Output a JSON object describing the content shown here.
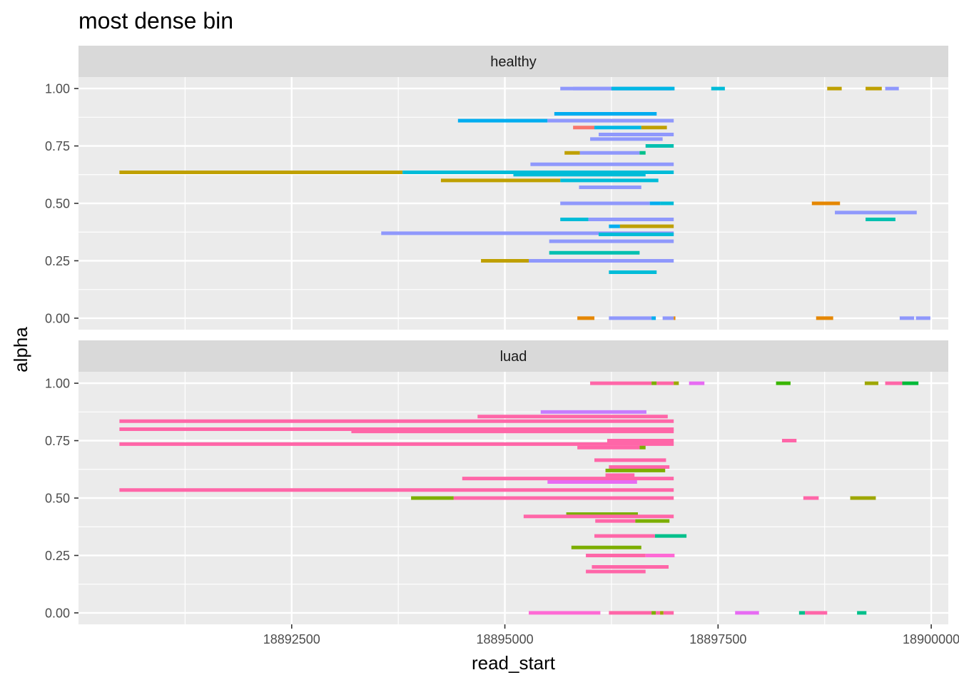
{
  "chart_data": {
    "type": "segments",
    "title": "most dense bin",
    "xlabel": "read_start",
    "ylabel": "alpha",
    "xlim": [
      18890000,
      18900200
    ],
    "ylim": [
      -0.05,
      1.05
    ],
    "x_ticks": [
      18892500,
      18895000,
      18897500,
      18900000
    ],
    "x_tick_labels": [
      "18892500",
      "18895000",
      "18897500",
      "18900000"
    ],
    "y_ticks": [
      0,
      0.25,
      0.5,
      0.75,
      1
    ],
    "y_tick_labels": [
      "0.00",
      "0.25",
      "0.50",
      "0.75",
      "1.00"
    ],
    "grid": true,
    "legend": "none",
    "panels": [
      {
        "label": "healthy",
        "segments": [
          {
            "x0": 18895650,
            "x1": 18896980,
            "y": 1.0,
            "color": "#8f98fc"
          },
          {
            "x0": 18895800,
            "x1": 18896950,
            "y": 1.0,
            "color": "#8f98fc"
          },
          {
            "x0": 18896250,
            "x1": 18896990,
            "y": 1.0,
            "color": "#00b8e5"
          },
          {
            "x0": 18897420,
            "x1": 18897580,
            "y": 1.0,
            "color": "#00bcd8"
          },
          {
            "x0": 18898780,
            "x1": 18898950,
            "y": 1.0,
            "color": "#bfa000"
          },
          {
            "x0": 18899230,
            "x1": 18899420,
            "y": 1.0,
            "color": "#bfa000"
          },
          {
            "x0": 18899460,
            "x1": 18899620,
            "y": 1.0,
            "color": "#8f98fc"
          },
          {
            "x0": 18895580,
            "x1": 18896780,
            "y": 0.89,
            "color": "#00adf0"
          },
          {
            "x0": 18894450,
            "x1": 18895500,
            "y": 0.86,
            "color": "#00adf0"
          },
          {
            "x0": 18895500,
            "x1": 18896980,
            "y": 0.86,
            "color": "#8f98fc"
          },
          {
            "x0": 18895800,
            "x1": 18896050,
            "y": 0.83,
            "color": "#f8766d"
          },
          {
            "x0": 18896050,
            "x1": 18896600,
            "y": 0.83,
            "color": "#00b8e5"
          },
          {
            "x0": 18896600,
            "x1": 18896900,
            "y": 0.83,
            "color": "#bfa000"
          },
          {
            "x0": 18896100,
            "x1": 18896980,
            "y": 0.8,
            "color": "#8f98fc"
          },
          {
            "x0": 18896000,
            "x1": 18896850,
            "y": 0.78,
            "color": "#8f98fc"
          },
          {
            "x0": 18896650,
            "x1": 18896980,
            "y": 0.75,
            "color": "#00c0b0"
          },
          {
            "x0": 18895700,
            "x1": 18895880,
            "y": 0.72,
            "color": "#bfa000"
          },
          {
            "x0": 18895880,
            "x1": 18896580,
            "y": 0.72,
            "color": "#8f98fc"
          },
          {
            "x0": 18896580,
            "x1": 18896650,
            "y": 0.72,
            "color": "#00c08b"
          },
          {
            "x0": 18895300,
            "x1": 18896980,
            "y": 0.67,
            "color": "#8f98fc"
          },
          {
            "x0": 18890480,
            "x1": 18893800,
            "y": 0.635,
            "color": "#bfa000"
          },
          {
            "x0": 18893800,
            "x1": 18896980,
            "y": 0.635,
            "color": "#00bcd8"
          },
          {
            "x0": 18895100,
            "x1": 18896650,
            "y": 0.625,
            "color": "#00bcd8"
          },
          {
            "x0": 18894250,
            "x1": 18895650,
            "y": 0.6,
            "color": "#bfa000"
          },
          {
            "x0": 18895650,
            "x1": 18896800,
            "y": 0.6,
            "color": "#00bcd8"
          },
          {
            "x0": 18895870,
            "x1": 18896600,
            "y": 0.57,
            "color": "#8f98fc"
          },
          {
            "x0": 18895650,
            "x1": 18896700,
            "y": 0.5,
            "color": "#8f98fc"
          },
          {
            "x0": 18896700,
            "x1": 18896820,
            "y": 0.5,
            "color": "#00adf0"
          },
          {
            "x0": 18896820,
            "x1": 18896980,
            "y": 0.5,
            "color": "#00bcd8"
          },
          {
            "x0": 18898600,
            "x1": 18898930,
            "y": 0.5,
            "color": "#e58700"
          },
          {
            "x0": 18898870,
            "x1": 18899830,
            "y": 0.46,
            "color": "#8f98fc"
          },
          {
            "x0": 18899230,
            "x1": 18899580,
            "y": 0.43,
            "color": "#00c0b0"
          },
          {
            "x0": 18895650,
            "x1": 18895980,
            "y": 0.43,
            "color": "#00bcd8"
          },
          {
            "x0": 18895980,
            "x1": 18896980,
            "y": 0.43,
            "color": "#8f98fc"
          },
          {
            "x0": 18896220,
            "x1": 18896350,
            "y": 0.4,
            "color": "#00adf0"
          },
          {
            "x0": 18896350,
            "x1": 18896980,
            "y": 0.4,
            "color": "#bfa000"
          },
          {
            "x0": 18893550,
            "x1": 18896980,
            "y": 0.37,
            "color": "#8f98fc"
          },
          {
            "x0": 18896100,
            "x1": 18896980,
            "y": 0.365,
            "color": "#00bcd8"
          },
          {
            "x0": 18895520,
            "x1": 18896980,
            "y": 0.335,
            "color": "#8f98fc"
          },
          {
            "x0": 18895520,
            "x1": 18896580,
            "y": 0.285,
            "color": "#00c0b0"
          },
          {
            "x0": 18894720,
            "x1": 18895280,
            "y": 0.25,
            "color": "#bfa000"
          },
          {
            "x0": 18895280,
            "x1": 18896980,
            "y": 0.25,
            "color": "#8f98fc"
          },
          {
            "x0": 18896220,
            "x1": 18896780,
            "y": 0.2,
            "color": "#00bcd8"
          },
          {
            "x0": 18895850,
            "x1": 18896050,
            "y": 0.0,
            "color": "#e58700"
          },
          {
            "x0": 18896220,
            "x1": 18896720,
            "y": 0.0,
            "color": "#8f98fc"
          },
          {
            "x0": 18896720,
            "x1": 18896770,
            "y": 0.0,
            "color": "#00adf0"
          },
          {
            "x0": 18896850,
            "x1": 18896980,
            "y": 0.0,
            "color": "#8f98fc"
          },
          {
            "x0": 18896980,
            "x1": 18897000,
            "y": 0.0,
            "color": "#e58700"
          },
          {
            "x0": 18898650,
            "x1": 18898850,
            "y": 0.0,
            "color": "#e58700"
          },
          {
            "x0": 18899630,
            "x1": 18899800,
            "y": 0.0,
            "color": "#8f98fc"
          },
          {
            "x0": 18899820,
            "x1": 18899990,
            "y": 0.0,
            "color": "#8f98fc"
          }
        ]
      },
      {
        "label": "luad",
        "segments": [
          {
            "x0": 18896000,
            "x1": 18896720,
            "y": 1.0,
            "color": "#ff66a8"
          },
          {
            "x0": 18896720,
            "x1": 18896780,
            "y": 1.0,
            "color": "#7cae00"
          },
          {
            "x0": 18896780,
            "x1": 18896980,
            "y": 1.0,
            "color": "#ff66a8"
          },
          {
            "x0": 18896980,
            "x1": 18897040,
            "y": 1.0,
            "color": "#9ea700"
          },
          {
            "x0": 18897160,
            "x1": 18897340,
            "y": 1.0,
            "color": "#e76bf3"
          },
          {
            "x0": 18898180,
            "x1": 18898350,
            "y": 1.0,
            "color": "#39b600"
          },
          {
            "x0": 18899220,
            "x1": 18899380,
            "y": 1.0,
            "color": "#9ea700"
          },
          {
            "x0": 18899460,
            "x1": 18899660,
            "y": 1.0,
            "color": "#ff66a8"
          },
          {
            "x0": 18899660,
            "x1": 18899850,
            "y": 1.0,
            "color": "#00ba38"
          },
          {
            "x0": 18895420,
            "x1": 18896660,
            "y": 0.875,
            "color": "#c77cff"
          },
          {
            "x0": 18894680,
            "x1": 18896910,
            "y": 0.855,
            "color": "#ff66a8"
          },
          {
            "x0": 18890480,
            "x1": 18896980,
            "y": 0.835,
            "color": "#ff66a8"
          },
          {
            "x0": 18890480,
            "x1": 18896980,
            "y": 0.8,
            "color": "#ff66a8"
          },
          {
            "x0": 18893200,
            "x1": 18896980,
            "y": 0.79,
            "color": "#ff66a8"
          },
          {
            "x0": 18896200,
            "x1": 18896980,
            "y": 0.75,
            "color": "#ff66a8"
          },
          {
            "x0": 18890480,
            "x1": 18896980,
            "y": 0.735,
            "color": "#ff66a8"
          },
          {
            "x0": 18898250,
            "x1": 18898420,
            "y": 0.75,
            "color": "#ff66a8"
          },
          {
            "x0": 18895850,
            "x1": 18896580,
            "y": 0.72,
            "color": "#ff66a8"
          },
          {
            "x0": 18896580,
            "x1": 18896650,
            "y": 0.72,
            "color": "#7cae00"
          },
          {
            "x0": 18896050,
            "x1": 18896890,
            "y": 0.665,
            "color": "#ff66a8"
          },
          {
            "x0": 18896220,
            "x1": 18896930,
            "y": 0.635,
            "color": "#ff66a8"
          },
          {
            "x0": 18896180,
            "x1": 18896880,
            "y": 0.62,
            "color": "#7cae00"
          },
          {
            "x0": 18896180,
            "x1": 18896520,
            "y": 0.6,
            "color": "#ff66a8"
          },
          {
            "x0": 18894500,
            "x1": 18896980,
            "y": 0.585,
            "color": "#ff66a8"
          },
          {
            "x0": 18895500,
            "x1": 18896550,
            "y": 0.57,
            "color": "#e76bf3"
          },
          {
            "x0": 18890480,
            "x1": 18896980,
            "y": 0.535,
            "color": "#ff66a8"
          },
          {
            "x0": 18893900,
            "x1": 18894400,
            "y": 0.5,
            "color": "#7cae00"
          },
          {
            "x0": 18894400,
            "x1": 18896980,
            "y": 0.5,
            "color": "#ff66a8"
          },
          {
            "x0": 18898500,
            "x1": 18898680,
            "y": 0.5,
            "color": "#ff66a8"
          },
          {
            "x0": 18899050,
            "x1": 18899350,
            "y": 0.5,
            "color": "#9ea700"
          },
          {
            "x0": 18895720,
            "x1": 18896560,
            "y": 0.43,
            "color": "#7cae00"
          },
          {
            "x0": 18895220,
            "x1": 18896980,
            "y": 0.42,
            "color": "#ff66a8"
          },
          {
            "x0": 18896060,
            "x1": 18896530,
            "y": 0.4,
            "color": "#ff66a8"
          },
          {
            "x0": 18896530,
            "x1": 18896930,
            "y": 0.4,
            "color": "#7cae00"
          },
          {
            "x0": 18896050,
            "x1": 18896760,
            "y": 0.335,
            "color": "#ff66a8"
          },
          {
            "x0": 18896760,
            "x1": 18897130,
            "y": 0.335,
            "color": "#00c08b"
          },
          {
            "x0": 18895780,
            "x1": 18896600,
            "y": 0.285,
            "color": "#7cae00"
          },
          {
            "x0": 18895950,
            "x1": 18896650,
            "y": 0.25,
            "color": "#ff66a8"
          },
          {
            "x0": 18896650,
            "x1": 18896990,
            "y": 0.25,
            "color": "#ff6ad5"
          },
          {
            "x0": 18896020,
            "x1": 18896920,
            "y": 0.2,
            "color": "#ff66a8"
          },
          {
            "x0": 18895950,
            "x1": 18896650,
            "y": 0.18,
            "color": "#ff66a8"
          },
          {
            "x0": 18895280,
            "x1": 18896120,
            "y": 0.0,
            "color": "#ff6ad5"
          },
          {
            "x0": 18896220,
            "x1": 18896720,
            "y": 0.0,
            "color": "#ff66a8"
          },
          {
            "x0": 18896720,
            "x1": 18896770,
            "y": 0.0,
            "color": "#7cae00"
          },
          {
            "x0": 18896770,
            "x1": 18896820,
            "y": 0.0,
            "color": "#ff66a8"
          },
          {
            "x0": 18896820,
            "x1": 18896860,
            "y": 0.0,
            "color": "#9ea700"
          },
          {
            "x0": 18896860,
            "x1": 18896980,
            "y": 0.0,
            "color": "#ff66a8"
          },
          {
            "x0": 18897700,
            "x1": 18897980,
            "y": 0.0,
            "color": "#e76bf3"
          },
          {
            "x0": 18898450,
            "x1": 18898520,
            "y": 0.0,
            "color": "#00c08b"
          },
          {
            "x0": 18898520,
            "x1": 18898780,
            "y": 0.0,
            "color": "#ff66a8"
          },
          {
            "x0": 18899130,
            "x1": 18899240,
            "y": 0.0,
            "color": "#00c08b"
          }
        ]
      }
    ]
  }
}
